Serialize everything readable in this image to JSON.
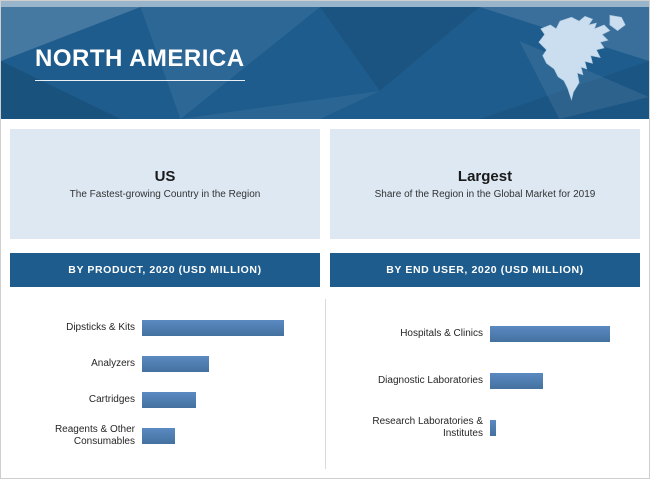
{
  "header": {
    "title": "NORTH AMERICA"
  },
  "colors": {
    "banner_bg": "#1e5c8d",
    "panel_bg": "#dde8f3",
    "section_bg": "#1e5c8d",
    "bar": "#44719f",
    "bar_light": "#5b8ac2",
    "map_fill": "#cadeef"
  },
  "panels": [
    {
      "title": "US",
      "subtitle": "The Fastest-growing Country in the Region"
    },
    {
      "title": "Largest",
      "subtitle": "Share of the Region in the Global Market for 2019"
    }
  ],
  "sections": [
    {
      "label": "BY PRODUCT, 2020 (USD MILLION)"
    },
    {
      "label": "BY END USER, 2020 (USD MILLION)"
    }
  ],
  "chart_data": [
    {
      "type": "bar",
      "orientation": "horizontal",
      "title": "BY PRODUCT, 2020 (USD MILLION)",
      "categories": [
        "Dipsticks & Kits",
        "Analyzers",
        "Cartridges",
        "Reagents & Other Consumables"
      ],
      "values": [
        100,
        47,
        38,
        23
      ],
      "value_axis_shown": false,
      "legend": "none",
      "grid": false
    },
    {
      "type": "bar",
      "orientation": "horizontal",
      "title": "BY END USER, 2020 (USD MILLION)",
      "categories": [
        "Hospitals & Clinics",
        "Diagnostic Laboratories",
        "Research Laboratories & Institutes"
      ],
      "values": [
        100,
        44,
        5
      ],
      "value_axis_shown": false,
      "legend": "none",
      "grid": false
    }
  ]
}
